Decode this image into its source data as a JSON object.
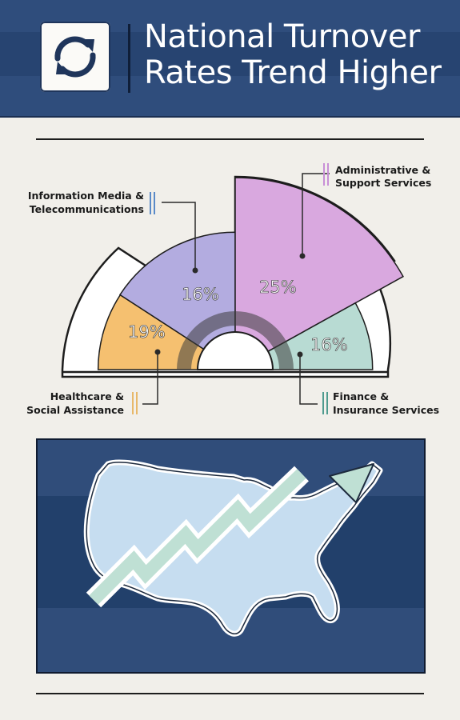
{
  "header": {
    "title_line1": "National Turnover",
    "title_line2": "Rates Trend Higher",
    "icon": "refresh-cycle-icon"
  },
  "chart_data": {
    "type": "pie",
    "values": [
      19,
      16,
      25,
      16
    ],
    "labels": [
      "Healthcare & Social Assistance",
      "Information Media & Telecommunications",
      "Administrative & Support Services",
      "Finance & Insurance Services"
    ],
    "value_labels": [
      "19%",
      "16%",
      "25%",
      "16%"
    ],
    "colors": [
      "#f5c070",
      "#b3ace0",
      "#d9a8df",
      "#b8dbd3"
    ]
  },
  "labels": {
    "healthcare_line1": "Healthcare &",
    "healthcare_line2": "Social Assistance",
    "info_line1": "Information Media &",
    "info_line2": "Telecommunications",
    "admin_line1": "Administrative &",
    "admin_line2": "Support Services",
    "finance_line1": "Finance &",
    "finance_line2": "Insurance Services"
  },
  "illustration": {
    "map": "usa-map-icon",
    "arrow": "trend-up-arrow-icon",
    "map_color": "#c6ddf0",
    "arrow_color": "#bfe0d4"
  },
  "colors": {
    "navy": "#2f4d7c",
    "background": "#f1efea"
  }
}
